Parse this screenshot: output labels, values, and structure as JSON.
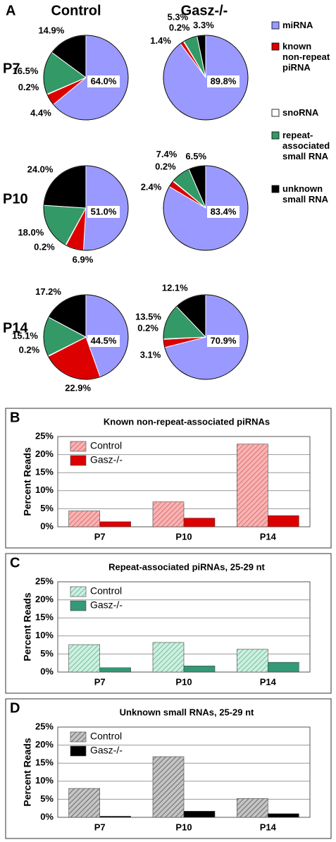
{
  "figure": {
    "panel": "A",
    "columns": [
      "Control",
      "Gasz-/-"
    ],
    "rows": [
      "P7",
      "P10",
      "P14"
    ],
    "legend": [
      {
        "name": "miRNA",
        "color": "#9999ff"
      },
      {
        "name": "known non-repeat piRNA",
        "color": "#dd0000"
      },
      {
        "name": "snoRNA",
        "color": "#ffffff"
      },
      {
        "name": "repeat-associated small RNA",
        "color": "#339966"
      },
      {
        "name": "unknown small RNA",
        "color": "#000000"
      }
    ]
  },
  "chart_data": [
    {
      "type": "pie",
      "values": [
        64.0,
        4.4,
        0.2,
        16.5,
        14.9
      ],
      "value_labels": [
        "64.0%",
        "4.4%",
        "0.2%",
        "16.5%",
        "14.9%"
      ]
    },
    {
      "type": "pie",
      "values": [
        89.8,
        1.4,
        0.2,
        5.3,
        3.3
      ],
      "value_labels": [
        "89.8%",
        "1.4%",
        "0.2%",
        "5.3%",
        "3.3%"
      ]
    },
    {
      "type": "pie",
      "values": [
        51.0,
        6.9,
        0.2,
        18.0,
        24.0
      ],
      "value_labels": [
        "51.0%",
        "6.9%",
        "0.2%",
        "18.0%",
        "24.0%"
      ]
    },
    {
      "type": "pie",
      "values": [
        83.4,
        2.4,
        0.2,
        7.4,
        6.5
      ],
      "value_labels": [
        "83.4%",
        "2.4%",
        "0.2%",
        "7.4%",
        "6.5%"
      ]
    },
    {
      "type": "pie",
      "values": [
        44.5,
        22.9,
        0.2,
        15.1,
        17.2
      ],
      "value_labels": [
        "44.5%",
        "22.9%",
        "0.2%",
        "15.1%",
        "17.2%"
      ]
    },
    {
      "type": "pie",
      "values": [
        70.9,
        3.1,
        0.2,
        13.5,
        12.1
      ],
      "value_labels": [
        "70.9%",
        "3.1%",
        "0.2%",
        "13.5%",
        "12.1%"
      ]
    },
    {
      "type": "bar",
      "panel": "B",
      "title": "Known non-repeat-associated piRNAs",
      "y_label": "Percent Reads",
      "categories": [
        "P7",
        "P10",
        "P14"
      ],
      "series": [
        {
          "name": "Control",
          "color": "#f6b4b4",
          "hatched": true,
          "hatch_color": "#e05a5a",
          "values": [
            4.4,
            6.9,
            22.9
          ]
        },
        {
          "name": "Gasz-/-",
          "color": "#dd0000",
          "values": [
            1.4,
            2.4,
            3.1
          ]
        }
      ],
      "ylim": [
        0,
        25
      ],
      "yticks": [
        {
          "value": 0,
          "label": "0%"
        },
        {
          "value": 5,
          "label": "5%"
        },
        {
          "value": 10,
          "label": "10%"
        },
        {
          "value": 15,
          "label": "15%"
        },
        {
          "value": 20,
          "label": "20%"
        },
        {
          "value": 25,
          "label": "25%"
        }
      ],
      "grid": true
    },
    {
      "type": "bar",
      "panel": "C",
      "title": "Repeat-associated piRNAs, 25-29 nt",
      "y_label": "Percent Reads",
      "categories": [
        "P7",
        "P10",
        "P14"
      ],
      "series": [
        {
          "name": "Control",
          "color": "#cdf0e0",
          "hatched": true,
          "hatch_color": "#5fb08c",
          "values": [
            7.6,
            8.2,
            6.3
          ]
        },
        {
          "name": "Gasz-/-",
          "color": "#339977",
          "values": [
            1.2,
            1.7,
            2.7
          ]
        }
      ],
      "ylim": [
        0,
        25
      ],
      "yticks": [
        {
          "value": 0,
          "label": "0%"
        },
        {
          "value": 5,
          "label": "5%"
        },
        {
          "value": 10,
          "label": "10%"
        },
        {
          "value": 15,
          "label": "15%"
        },
        {
          "value": 20,
          "label": "20%"
        },
        {
          "value": 25,
          "label": "25%"
        }
      ],
      "grid": true
    },
    {
      "type": "bar",
      "panel": "D",
      "title": "Unknown small RNAs, 25-29 nt",
      "y_label": "Percent Reads",
      "categories": [
        "P7",
        "P10",
        "P14"
      ],
      "series": [
        {
          "name": "Control",
          "color": "#c4c4c4",
          "hatched": true,
          "hatch_color": "#555555",
          "values": [
            8.0,
            16.8,
            5.2
          ]
        },
        {
          "name": "Gasz-/-",
          "color": "#000000",
          "values": [
            0.3,
            1.7,
            1.0
          ]
        }
      ],
      "ylim": [
        0,
        25
      ],
      "yticks": [
        {
          "value": 0,
          "label": "0%"
        },
        {
          "value": 5,
          "label": "5%"
        },
        {
          "value": 10,
          "label": "10%"
        },
        {
          "value": 15,
          "label": "15%"
        },
        {
          "value": 20,
          "label": "20%"
        },
        {
          "value": 25,
          "label": "25%"
        }
      ],
      "grid": true
    }
  ]
}
